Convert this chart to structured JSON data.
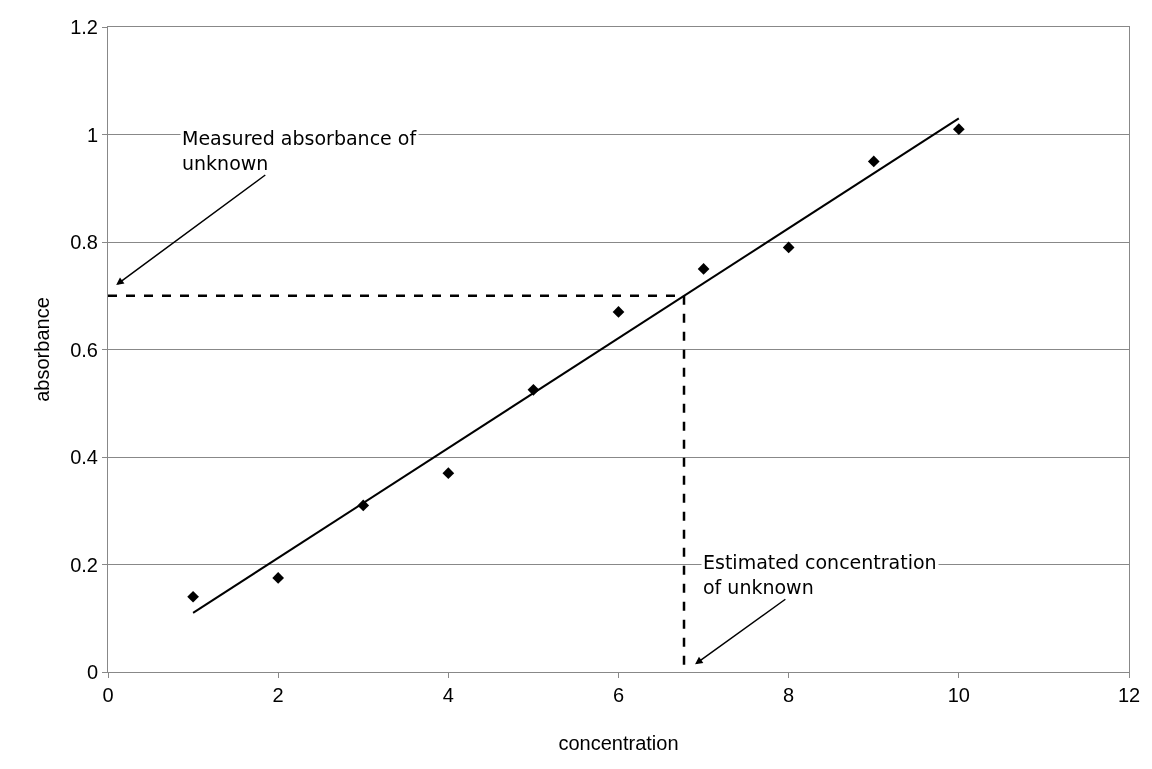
{
  "chart_data": {
    "type": "scatter",
    "xlabel": "concentration",
    "ylabel": "absorbance",
    "xlim": [
      0,
      12
    ],
    "xticks": [
      0,
      2,
      4,
      6,
      8,
      10,
      12
    ],
    "ylim": [
      0,
      1.2
    ],
    "yticks": [
      0,
      0.2,
      0.4,
      0.6,
      0.8,
      1,
      1.2
    ],
    "grid": "y",
    "legend": false,
    "series": [
      {
        "color": "#000000",
        "marker": "diamond",
        "x": [
          1,
          2,
          3,
          4,
          5,
          6,
          7,
          8,
          9,
          10
        ],
        "values": [
          0.14,
          0.175,
          0.31,
          0.37,
          0.525,
          0.67,
          0.75,
          0.79,
          0.95,
          1.01
        ]
      },
      {
        "type": "line",
        "color": "#000000",
        "line_style": "solid",
        "x": [
          1,
          10
        ],
        "values": [
          0.11,
          1.03
        ]
      },
      {
        "type": "line",
        "color": "#000000",
        "line_style": "dashed",
        "x": [
          0,
          6.77
        ],
        "values": [
          0.7,
          0.7
        ]
      },
      {
        "type": "line",
        "color": "#000000",
        "line_style": "dashed",
        "x": [
          6.77,
          6.77
        ],
        "values": [
          0.7,
          0
        ]
      }
    ],
    "annotations": [
      "Measured absorbance of\nunknown",
      "Estimated concentration\nof unknown"
    ]
  }
}
